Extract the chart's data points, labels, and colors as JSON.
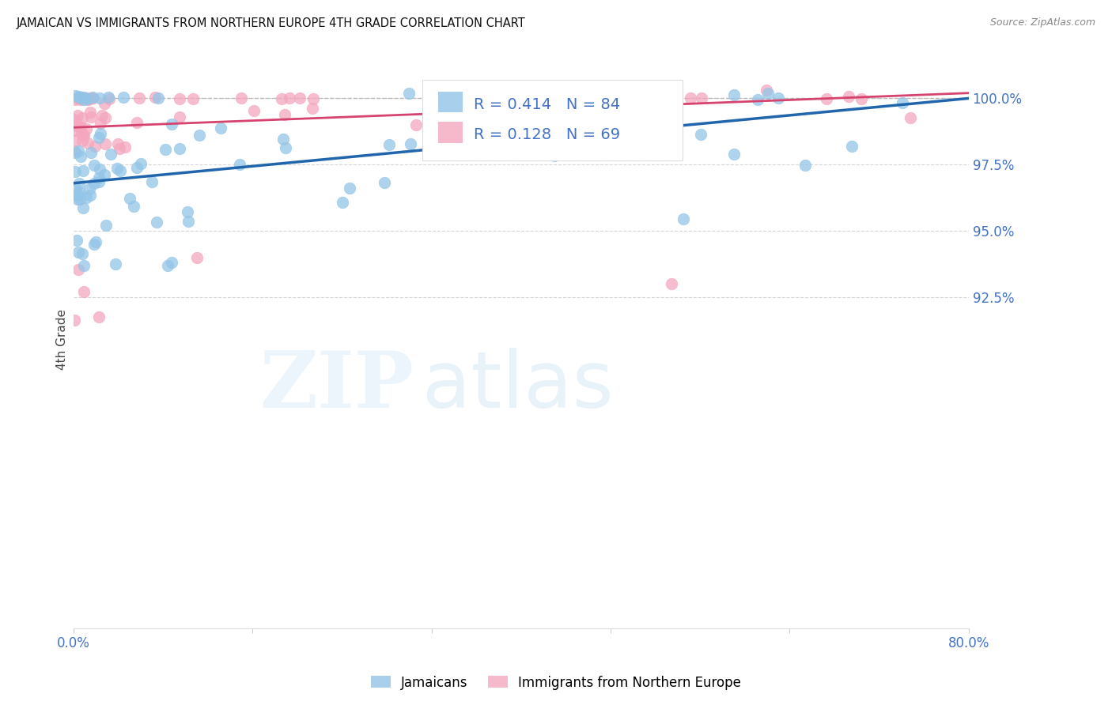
{
  "title": "JAMAICAN VS IMMIGRANTS FROM NORTHERN EUROPE 4TH GRADE CORRELATION CHART",
  "source": "Source: ZipAtlas.com",
  "ylabel": "4th Grade",
  "right_yticks": [
    100.0,
    97.5,
    95.0,
    92.5
  ],
  "right_ytick_labels": [
    "100.0%",
    "97.5%",
    "95.0%",
    "92.5%"
  ],
  "legend_blue_label": "Jamaicans",
  "legend_pink_label": "Immigrants from Northern Europe",
  "R_blue": 0.414,
  "N_blue": 84,
  "R_pink": 0.128,
  "N_pink": 69,
  "blue_color": "#93c5e8",
  "pink_color": "#f4a7be",
  "blue_line_color": "#2166ac",
  "pink_line_color": "#d6436e",
  "axis_color": "#4472c4",
  "xmin": 0.0,
  "xmax": 80.0,
  "ymin": 80.0,
  "ymax": 101.8,
  "blue_trend_x0": 0.0,
  "blue_trend_y0": 96.8,
  "blue_trend_x1": 80.0,
  "blue_trend_y1": 100.0,
  "pink_trend_x0": 0.0,
  "pink_trend_y0": 98.9,
  "pink_trend_x1": 80.0,
  "pink_trend_y1": 100.2,
  "dashed_line_y": 100.0
}
